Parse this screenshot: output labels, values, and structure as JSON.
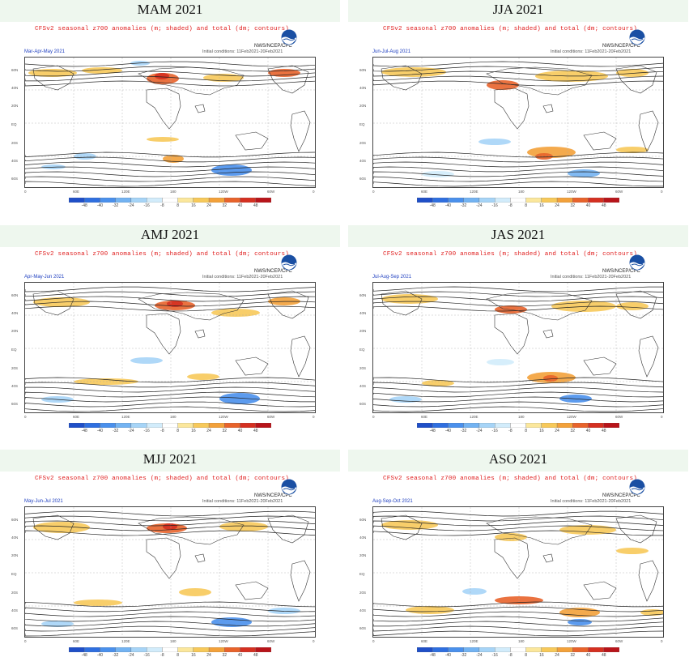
{
  "header_text": "CFSv2 seasonal z700 anomalies (m; shaded) and total (dm; contours)",
  "agency_text": "NWS/NCEP/CPC",
  "ic_text": "Initial conditions: 11Feb2021-20Feb2021",
  "lat_labels": [
    "60N",
    "40N",
    "20N",
    "EQ",
    "20S",
    "40S",
    "60S"
  ],
  "lon_labels": [
    "0",
    "60E",
    "120E",
    "180",
    "120W",
    "60W",
    "0"
  ],
  "colorbar": {
    "labels": [
      "-48",
      "-40",
      "-32",
      "-24",
      "-16",
      "-8",
      "8",
      "16",
      "24",
      "32",
      "40",
      "48"
    ],
    "colors": [
      "#1f4fc8",
      "#2f6fe0",
      "#4a90ec",
      "#73b3f2",
      "#a6d4f7",
      "#d2ecfb",
      "#ffffff",
      "#fbe79c",
      "#f7c95a",
      "#f3a13a",
      "#e8632b",
      "#d53021",
      "#b8141a"
    ]
  },
  "panels": [
    {
      "title": "MAM 2021",
      "subtitle": "Mar-Apr-May 2021",
      "anom": [
        [
          4,
          14,
          60,
          10,
          "#f7c95a"
        ],
        [
          70,
          12,
          50,
          8,
          "#f7c95a"
        ],
        [
          150,
          19,
          40,
          14,
          "#e8632b"
        ],
        [
          160,
          19,
          18,
          8,
          "#d53021"
        ],
        [
          300,
          14,
          40,
          10,
          "#e8632b"
        ],
        [
          220,
          20,
          50,
          10,
          "#f7c95a"
        ],
        [
          130,
          4,
          24,
          6,
          "#a6d4f7"
        ],
        [
          60,
          118,
          28,
          8,
          "#a6d4f7"
        ],
        [
          170,
          120,
          26,
          10,
          "#f3a13a"
        ],
        [
          230,
          132,
          50,
          14,
          "#4a90ec"
        ],
        [
          150,
          98,
          40,
          6,
          "#f7c95a"
        ],
        [
          20,
          132,
          30,
          6,
          "#a6d4f7"
        ]
      ]
    },
    {
      "title": "JJA 2021",
      "subtitle": "Jun-Jul-Aug 2021",
      "anom": [
        [
          10,
          12,
          80,
          12,
          "#f7c95a"
        ],
        [
          140,
          28,
          40,
          12,
          "#e8632b"
        ],
        [
          200,
          16,
          90,
          14,
          "#f7c95a"
        ],
        [
          300,
          14,
          40,
          10,
          "#f7c95a"
        ],
        [
          130,
          100,
          40,
          8,
          "#a6d4f7"
        ],
        [
          190,
          110,
          60,
          14,
          "#f3a13a"
        ],
        [
          200,
          118,
          22,
          8,
          "#e8632b"
        ],
        [
          240,
          138,
          40,
          10,
          "#73b3f2"
        ],
        [
          60,
          140,
          40,
          8,
          "#d2ecfb"
        ],
        [
          300,
          110,
          40,
          8,
          "#f7c95a"
        ]
      ]
    },
    {
      "title": "AMJ 2021",
      "subtitle": "Apr-May-Jun 2021",
      "anom": [
        [
          10,
          18,
          70,
          12,
          "#f7c95a"
        ],
        [
          160,
          22,
          50,
          12,
          "#e8632b"
        ],
        [
          175,
          22,
          20,
          8,
          "#d53021"
        ],
        [
          230,
          32,
          60,
          10,
          "#f7c95a"
        ],
        [
          300,
          18,
          40,
          10,
          "#f3a13a"
        ],
        [
          130,
          92,
          40,
          8,
          "#a6d4f7"
        ],
        [
          60,
          118,
          80,
          8,
          "#f7c95a"
        ],
        [
          240,
          136,
          50,
          14,
          "#4a90ec"
        ],
        [
          20,
          140,
          40,
          8,
          "#a6d4f7"
        ],
        [
          200,
          112,
          40,
          8,
          "#f7c95a"
        ]
      ]
    },
    {
      "title": "JAS 2021",
      "subtitle": "Jul-Aug-Sep 2021",
      "anom": [
        [
          10,
          14,
          70,
          12,
          "#f7c95a"
        ],
        [
          150,
          28,
          40,
          10,
          "#e8632b"
        ],
        [
          220,
          22,
          80,
          14,
          "#f7c95a"
        ],
        [
          300,
          24,
          40,
          10,
          "#f7c95a"
        ],
        [
          190,
          110,
          60,
          14,
          "#f3a13a"
        ],
        [
          210,
          114,
          18,
          8,
          "#e8632b"
        ],
        [
          230,
          138,
          40,
          10,
          "#4a90ec"
        ],
        [
          60,
          120,
          40,
          8,
          "#f7c95a"
        ],
        [
          20,
          140,
          40,
          8,
          "#a6d4f7"
        ],
        [
          140,
          94,
          34,
          8,
          "#d2ecfb"
        ]
      ]
    },
    {
      "title": "MJJ 2021",
      "subtitle": "May-Jun-Jul 2021",
      "anom": [
        [
          10,
          18,
          70,
          14,
          "#f7c95a"
        ],
        [
          150,
          20,
          50,
          12,
          "#e8632b"
        ],
        [
          170,
          20,
          18,
          8,
          "#d53021"
        ],
        [
          240,
          18,
          60,
          12,
          "#f7c95a"
        ],
        [
          190,
          100,
          40,
          10,
          "#f7c95a"
        ],
        [
          60,
          114,
          60,
          8,
          "#f7c95a"
        ],
        [
          230,
          136,
          50,
          12,
          "#4a90ec"
        ],
        [
          20,
          140,
          40,
          8,
          "#a6d4f7"
        ],
        [
          300,
          124,
          40,
          8,
          "#a6d4f7"
        ]
      ]
    },
    {
      "title": "ASO 2021",
      "subtitle": "Aug-Sep-Oct 2021",
      "anom": [
        [
          10,
          16,
          70,
          12,
          "#f7c95a"
        ],
        [
          150,
          32,
          40,
          10,
          "#f7c95a"
        ],
        [
          230,
          22,
          70,
          12,
          "#f7c95a"
        ],
        [
          300,
          50,
          40,
          8,
          "#f7c95a"
        ],
        [
          150,
          110,
          60,
          10,
          "#e8632b"
        ],
        [
          230,
          124,
          50,
          12,
          "#f3a13a"
        ],
        [
          240,
          138,
          30,
          8,
          "#4a90ec"
        ],
        [
          40,
          122,
          60,
          10,
          "#f7c95a"
        ],
        [
          110,
          100,
          30,
          8,
          "#a6d4f7"
        ],
        [
          330,
          126,
          30,
          8,
          "#f7c95a"
        ]
      ]
    }
  ]
}
